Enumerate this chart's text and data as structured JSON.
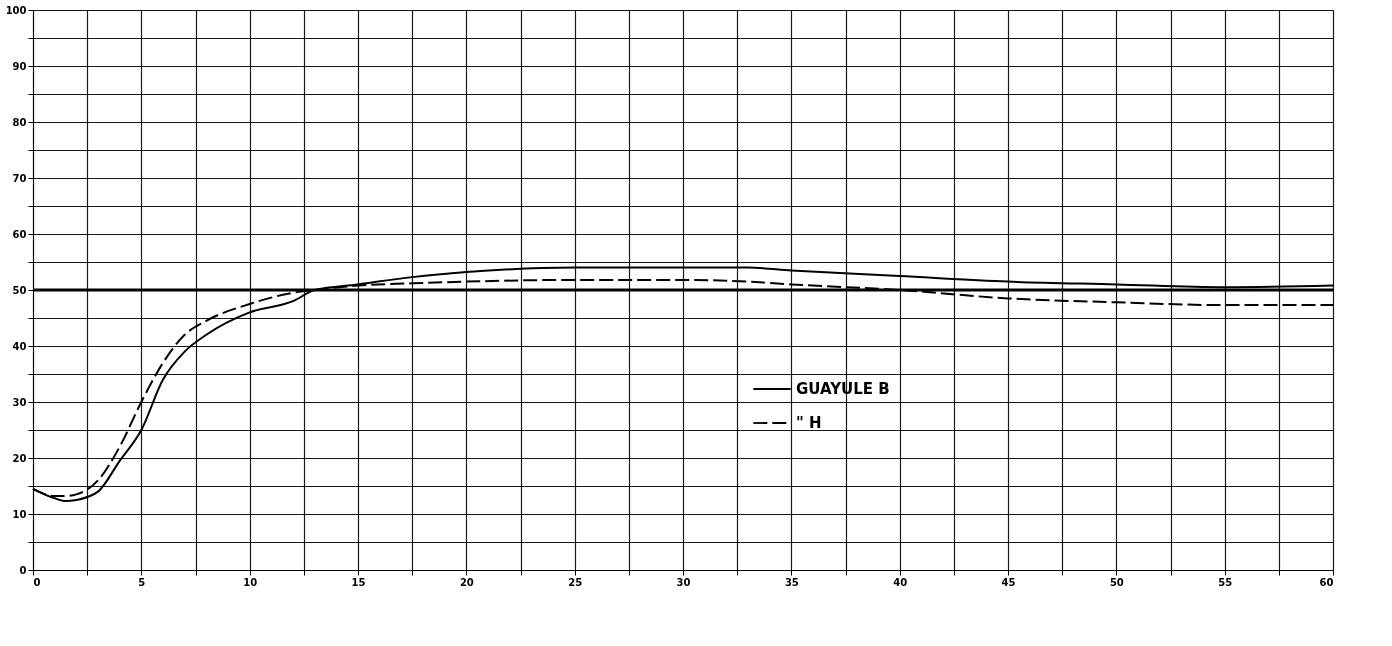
{
  "chart_data": {
    "type": "line",
    "x": [
      0,
      1,
      1.5,
      2,
      3,
      4,
      5,
      6,
      7,
      8,
      10,
      12,
      13,
      15,
      17.5,
      20,
      25,
      30,
      33,
      35,
      40,
      45,
      50,
      55,
      60
    ],
    "series": [
      {
        "name": "GUAYULE B",
        "color": "#000000",
        "line_style": "solid",
        "values": [
          14.5,
          12.8,
          12.3,
          12.5,
          14,
          19.5,
          25,
          34,
          39,
          42,
          46,
          48,
          50,
          51,
          52.3,
          53.2,
          54,
          54,
          54,
          53.5,
          52.5,
          51.5,
          51,
          50.5,
          50.8
        ]
      },
      {
        "name": "\"        H",
        "color": "#000000",
        "line_style": "dashed",
        "values": [
          14.5,
          13.2,
          13.2,
          13.5,
          16,
          22,
          30,
          37,
          42,
          44.5,
          47.5,
          49.5,
          50,
          50.8,
          51.2,
          51.5,
          51.8,
          51.8,
          51.5,
          51,
          50,
          48.5,
          47.8,
          47.3,
          47.3
        ]
      }
    ],
    "xlim": [
      0,
      60
    ],
    "ylim": [
      0,
      100
    ],
    "xticks": [
      0,
      {
        "value": 2.5,
        "label": null
      },
      5,
      {
        "value": 7.5,
        "label": null
      },
      10,
      {
        "value": 12.5,
        "label": null
      },
      15,
      {
        "value": 17.5,
        "label": null
      },
      20,
      {
        "value": 22.5,
        "label": null
      },
      25,
      {
        "value": 27.5,
        "label": null
      },
      30,
      {
        "value": 32.5,
        "label": null
      },
      35,
      {
        "value": 37.5,
        "label": null
      },
      40,
      {
        "value": 42.5,
        "label": null
      },
      45,
      {
        "value": 47.5,
        "label": null
      },
      50,
      {
        "value": 52.5,
        "label": null
      },
      55,
      {
        "value": 57.5,
        "label": null
      },
      60
    ],
    "yticks": [
      0,
      {
        "value": 5,
        "label": null
      },
      10,
      {
        "value": 15,
        "label": null
      },
      20,
      {
        "value": 25,
        "label": null
      },
      30,
      {
        "value": 35,
        "label": null
      },
      40,
      {
        "value": 45,
        "label": null
      },
      50,
      {
        "value": 55,
        "label": null
      },
      60,
      {
        "value": 65,
        "label": null
      },
      70,
      {
        "value": 75,
        "label": null
      },
      80,
      {
        "value": 85,
        "label": null
      },
      90,
      {
        "value": 95,
        "label": null
      },
      100
    ],
    "ref_lines": [
      {
        "axis": "y",
        "value": 50,
        "label": null,
        "color": "#000000"
      }
    ],
    "grid": true,
    "legend": "right"
  }
}
